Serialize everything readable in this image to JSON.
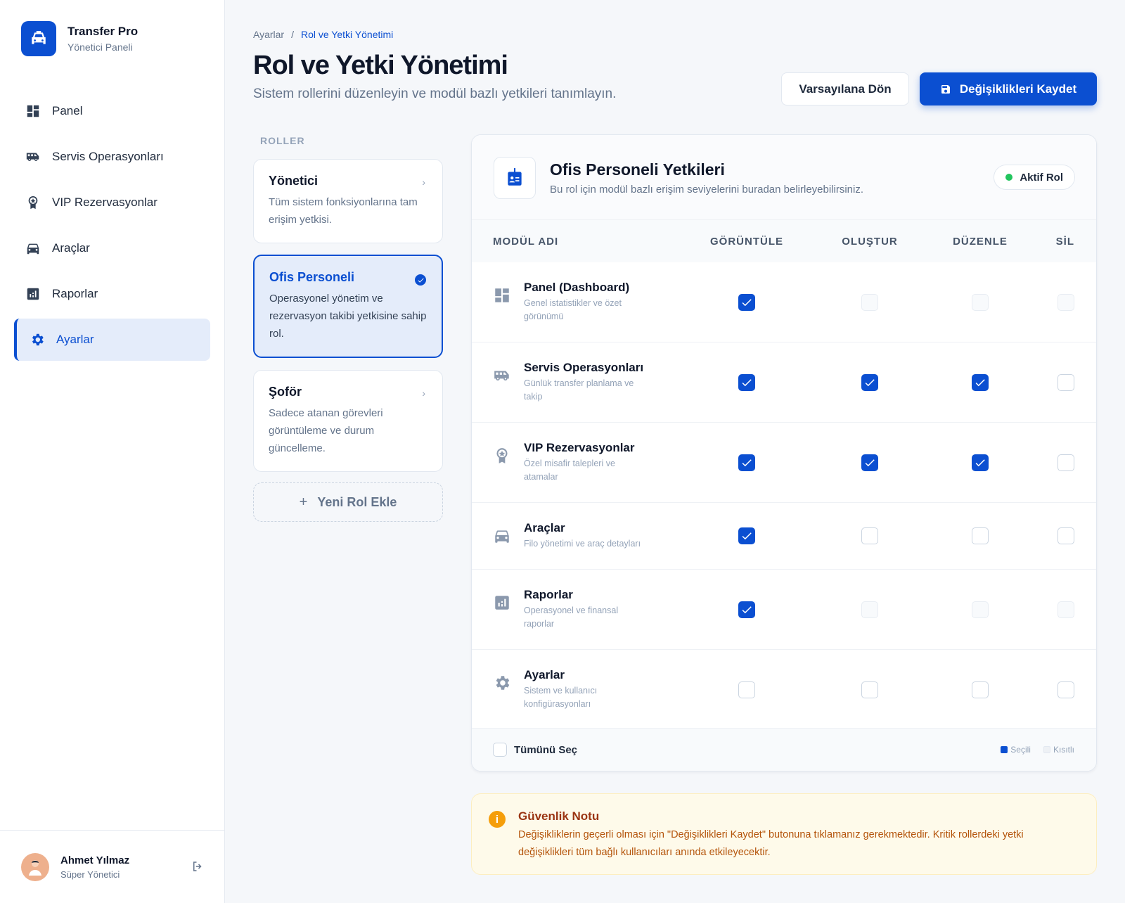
{
  "brand": {
    "title": "Transfer Pro",
    "subtitle": "Yönetici Paneli",
    "accent": "#0b4fd1"
  },
  "sidebar": {
    "items": [
      {
        "label": "Panel",
        "icon": "dashboard-icon"
      },
      {
        "label": "Servis Operasyonları",
        "icon": "van-icon"
      },
      {
        "label": "VIP Rezervasyonlar",
        "icon": "award-icon"
      },
      {
        "label": "Araçlar",
        "icon": "car-icon"
      },
      {
        "label": "Raporlar",
        "icon": "chart-icon"
      },
      {
        "label": "Ayarlar",
        "icon": "gear-icon",
        "active": true
      }
    ]
  },
  "user": {
    "name": "Ahmet Yılmaz",
    "role": "Süper Yönetici"
  },
  "breadcrumb": {
    "parent": "Ayarlar",
    "separator": "/",
    "current": "Rol ve Yetki Yönetimi"
  },
  "header": {
    "title": "Rol ve Yetki Yönetimi",
    "subtitle": "Sistem rollerini düzenleyin ve modül bazlı yetkileri tanımlayın.",
    "reset_label": "Varsayılana Dön",
    "save_label": "Değişiklikleri Kaydet"
  },
  "roles": {
    "label": "ROLLER",
    "items": [
      {
        "title": "Yönetici",
        "desc": "Tüm sistem fonksiyonlarına tam erişim yetkisi."
      },
      {
        "title": "Ofis Personeli",
        "desc": "Operasyonel yönetim ve rezervasyon takibi yetkisine sahip rol.",
        "selected": true
      },
      {
        "title": "Şoför",
        "desc": "Sadece atanan görevleri görüntüleme ve durum güncelleme."
      }
    ],
    "add_label": "Yeni Rol Ekle"
  },
  "permissions": {
    "title": "Ofis Personeli Yetkileri",
    "subtitle": "Bu rol için modül bazlı erişim seviyelerini buradan belirleyebilirsiniz.",
    "badge": "Aktif Rol",
    "columns": [
      "MODÜL ADI",
      "GÖRÜNTÜLE",
      "OLUŞTUR",
      "DÜZENLE",
      "SİL"
    ],
    "rows": [
      {
        "name": "Panel (Dashboard)",
        "desc": "Genel istatistikler ve özet görünümü",
        "icon": "dashboard-icon",
        "perms": [
          "checked",
          "disabled",
          "disabled",
          "disabled"
        ]
      },
      {
        "name": "Servis Operasyonları",
        "desc": "Günlük transfer planlama ve takip",
        "icon": "van-icon",
        "perms": [
          "checked",
          "checked",
          "checked",
          "unchecked"
        ]
      },
      {
        "name": "VIP Rezervasyonlar",
        "desc": "Özel misafir talepleri ve atamalar",
        "icon": "award-icon",
        "perms": [
          "checked",
          "checked",
          "checked",
          "unchecked"
        ]
      },
      {
        "name": "Araçlar",
        "desc": "Filo yönetimi ve araç detayları",
        "icon": "car-icon",
        "perms": [
          "checked",
          "unchecked",
          "unchecked",
          "unchecked"
        ]
      },
      {
        "name": "Raporlar",
        "desc": "Operasyonel ve finansal raporlar",
        "icon": "chart-icon",
        "perms": [
          "checked",
          "disabled",
          "disabled",
          "disabled"
        ]
      },
      {
        "name": "Ayarlar",
        "desc": "Sistem ve kullanıcı konfigürasyonları",
        "icon": "gear-icon",
        "perms": [
          "unchecked",
          "unchecked",
          "unchecked",
          "unchecked"
        ]
      }
    ],
    "select_all": "Tümünü Seç",
    "legend": {
      "selected": "Seçili",
      "restricted": "Kısıtlı"
    }
  },
  "notice": {
    "title": "Güvenlik Notu",
    "text": "Değişikliklerin geçerli olması için \"Değişiklikleri Kaydet\" butonuna tıklamanız gerekmektedir. Kritik rollerdeki yetki değişiklikleri tüm bağlı kullanıcıları anında etkileyecektir."
  }
}
